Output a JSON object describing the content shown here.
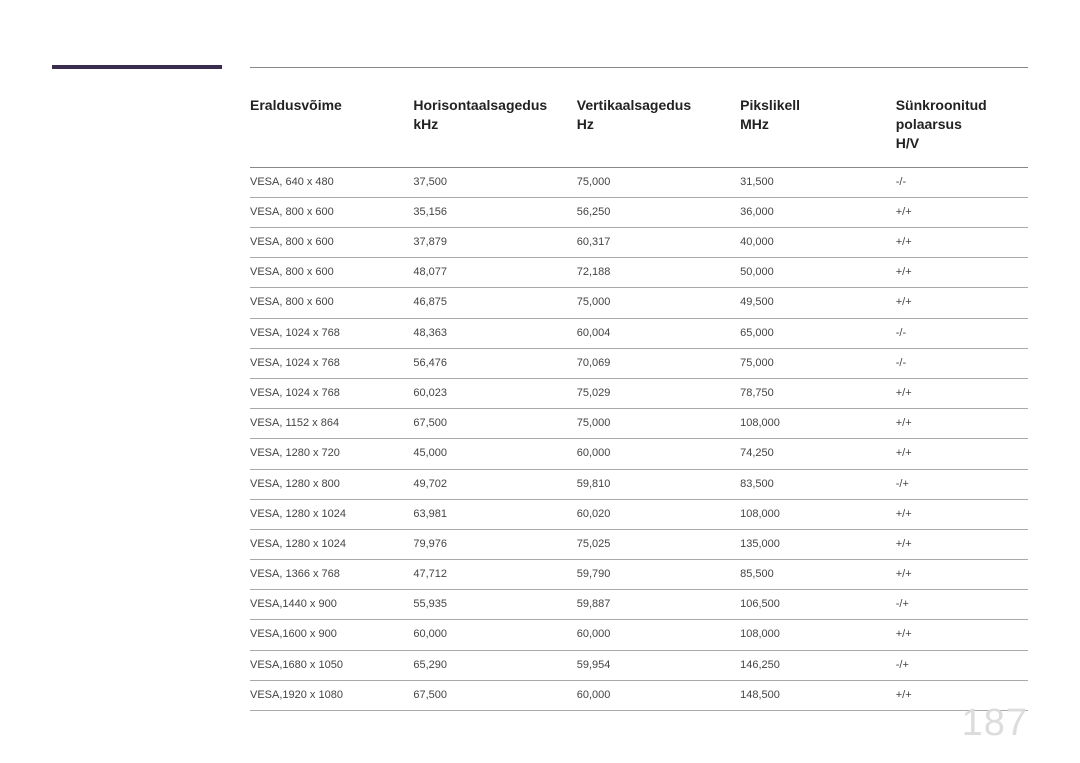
{
  "page_number": "187",
  "accent_color": "#3a2c4f",
  "table": {
    "columns": [
      {
        "line1": "Eraldusvõime",
        "line2": ""
      },
      {
        "line1": "Horisontaalsagedus",
        "line2": "kHz"
      },
      {
        "line1": "Vertikaalsagedus",
        "line2": "Hz"
      },
      {
        "line1": "Pikslikell",
        "line2": "MHz"
      },
      {
        "line1": "Sünkroonitud polaarsus",
        "line2": "H/V"
      }
    ],
    "rows": [
      [
        "VESA, 640 x 480",
        "37,500",
        "75,000",
        "31,500",
        "-/-"
      ],
      [
        "VESA, 800 x 600",
        "35,156",
        "56,250",
        "36,000",
        "+/+"
      ],
      [
        "VESA, 800 x 600",
        "37,879",
        "60,317",
        "40,000",
        "+/+"
      ],
      [
        "VESA, 800 x 600",
        "48,077",
        "72,188",
        "50,000",
        "+/+"
      ],
      [
        "VESA, 800 x 600",
        "46,875",
        "75,000",
        "49,500",
        "+/+"
      ],
      [
        "VESA, 1024 x 768",
        "48,363",
        "60,004",
        "65,000",
        "-/-"
      ],
      [
        "VESA, 1024 x 768",
        "56,476",
        "70,069",
        "75,000",
        "-/-"
      ],
      [
        "VESA, 1024 x 768",
        "60,023",
        "75,029",
        "78,750",
        "+/+"
      ],
      [
        "VESA, 1152 x 864",
        "67,500",
        "75,000",
        "108,000",
        "+/+"
      ],
      [
        "VESA, 1280 x 720",
        "45,000",
        "60,000",
        "74,250",
        "+/+"
      ],
      [
        "VESA, 1280 x 800",
        "49,702",
        "59,810",
        "83,500",
        "-/+"
      ],
      [
        "VESA, 1280 x 1024",
        "63,981",
        "60,020",
        "108,000",
        "+/+"
      ],
      [
        "VESA, 1280 x 1024",
        "79,976",
        "75,025",
        "135,000",
        "+/+"
      ],
      [
        "VESA, 1366 x 768",
        "47,712",
        "59,790",
        "85,500",
        "+/+"
      ],
      [
        "VESA,1440 x 900",
        "55,935",
        "59,887",
        "106,500",
        "-/+"
      ],
      [
        "VESA,1600 x 900",
        "60,000",
        "60,000",
        "108,000",
        "+/+"
      ],
      [
        "VESA,1680 x 1050",
        "65,290",
        "59,954",
        "146,250",
        "-/+"
      ],
      [
        "VESA,1920 x 1080",
        "67,500",
        "60,000",
        "148,500",
        "+/+"
      ]
    ]
  }
}
